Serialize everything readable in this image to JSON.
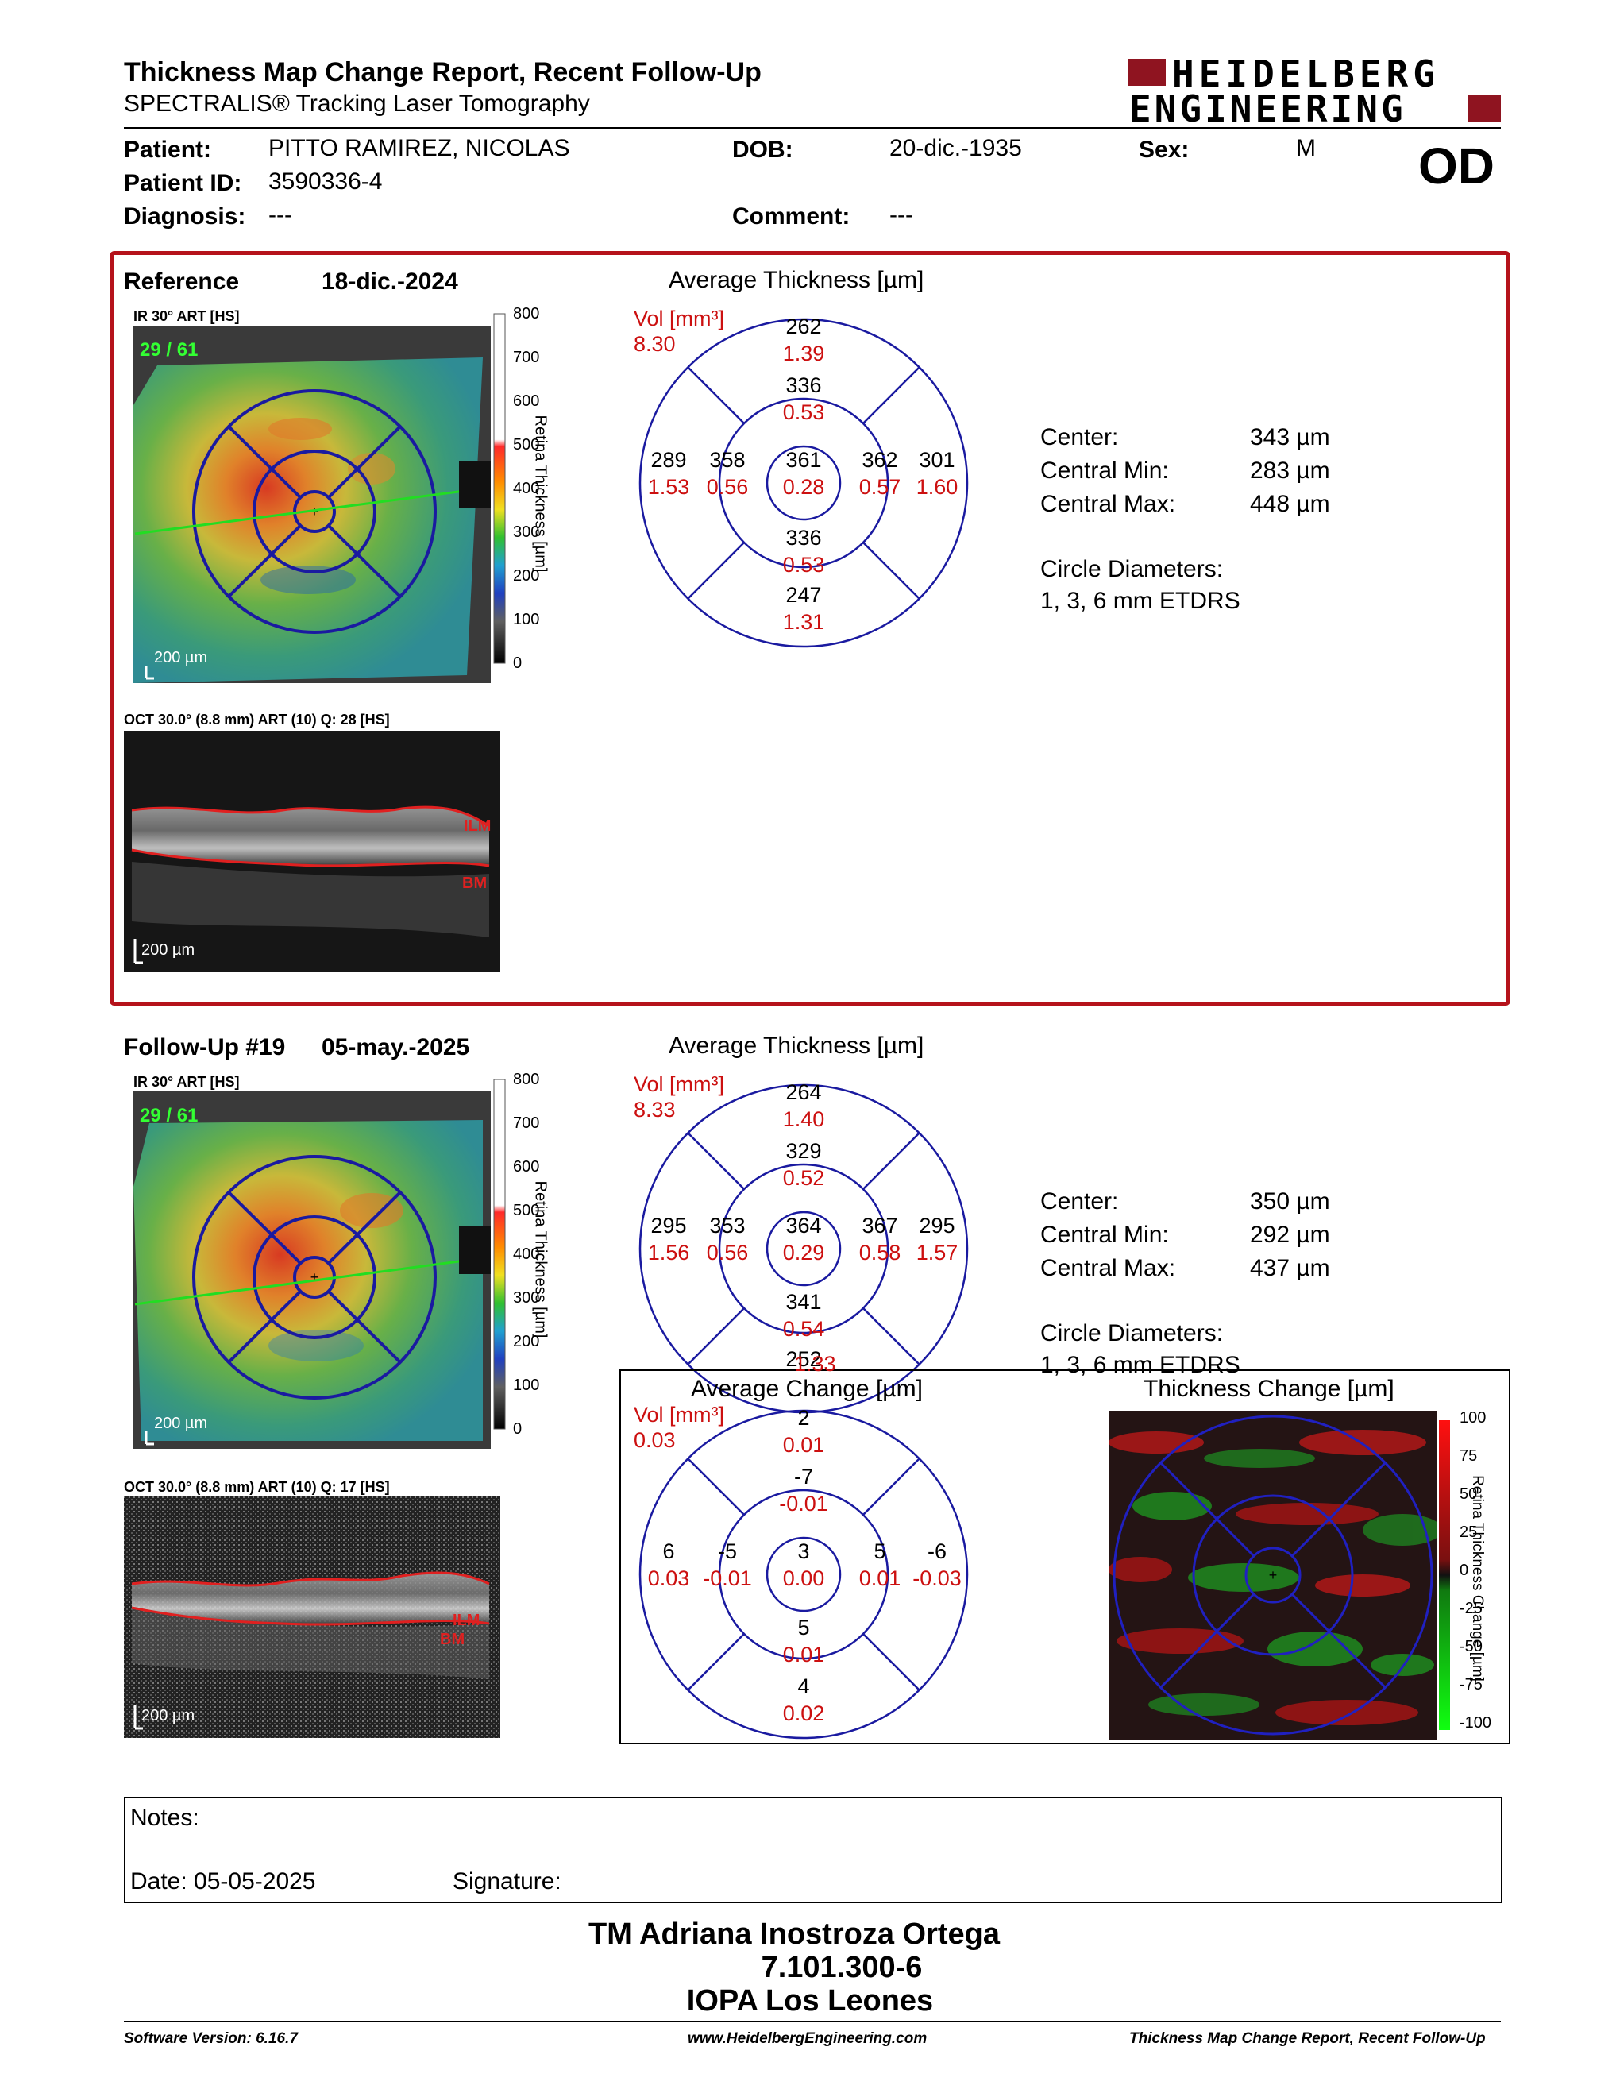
{
  "header": {
    "title": "Thickness Map Change Report, Recent Follow-Up",
    "subtitle": "SPECTRALIS® Tracking Laser Tomography",
    "logo_line1": "HEIDELBERG",
    "logo_line2": "ENGINEERING",
    "eye": "OD"
  },
  "patient": {
    "patient_label": "Patient:",
    "patient_value": "PITTO RAMIREZ, NICOLAS",
    "dob_label": "DOB:",
    "dob_value": "20-dic.-1935",
    "sex_label": "Sex:",
    "sex_value": "M",
    "id_label": "Patient ID:",
    "id_value": "3590336-4",
    "diagnosis_label": "Diagnosis:",
    "diagnosis_value": "---",
    "comment_label": "Comment:",
    "comment_value": "---"
  },
  "reference": {
    "label": "Reference",
    "date": "18-dic.-2024",
    "ir_label": "IR 30° ART [HS]",
    "frames": "29 / 61",
    "scale": "200 µm",
    "oct_label": "OCT 30.0° (8.8 mm) ART (10) Q: 28 [HS]",
    "oct_scale": "200 µm",
    "ilm": "ILM",
    "bm": "BM",
    "avg_title": "Average Thickness [µm]",
    "vol_label": "Vol [mm³]",
    "vol_value": "8.30",
    "sectors": {
      "outer_sup": {
        "t": "262",
        "v": "1.39"
      },
      "inner_sup": {
        "t": "336",
        "v": "0.53"
      },
      "outer_temp": {
        "t": "289",
        "v": "1.53"
      },
      "inner_temp": {
        "t": "358",
        "v": "0.56"
      },
      "center": {
        "t": "361",
        "v": "0.28"
      },
      "inner_nas": {
        "t": "362",
        "v": "0.57"
      },
      "outer_nas": {
        "t": "301",
        "v": "1.60"
      },
      "inner_inf": {
        "t": "336",
        "v": "0.53"
      },
      "outer_inf": {
        "t": "247",
        "v": "1.31"
      }
    },
    "stats": {
      "center_label": "Center:",
      "center_value": "343 µm",
      "min_label": "Central Min:",
      "min_value": "283 µm",
      "max_label": "Central Max:",
      "max_value": "448 µm",
      "circle_label": "Circle Diameters:",
      "circle_value": "1, 3, 6 mm ETDRS"
    }
  },
  "followup": {
    "label": "Follow-Up #19",
    "date": "05-may.-2025",
    "ir_label": "IR 30° ART [HS]",
    "frames": "29 / 61",
    "scale": "200 µm",
    "oct_label": "OCT 30.0° (8.8 mm) ART (10) Q: 17 [HS]",
    "oct_scale": "200 µm",
    "ilm": "ILM",
    "bm": "BM",
    "avg_title": "Average Thickness [µm]",
    "vol_label": "Vol [mm³]",
    "vol_value": "8.33",
    "sectors": {
      "outer_sup": {
        "t": "264",
        "v": "1.40"
      },
      "inner_sup": {
        "t": "329",
        "v": "0.52"
      },
      "outer_temp": {
        "t": "295",
        "v": "1.56"
      },
      "inner_temp": {
        "t": "353",
        "v": "0.56"
      },
      "center": {
        "t": "364",
        "v": "0.29"
      },
      "inner_nas": {
        "t": "367",
        "v": "0.58"
      },
      "outer_nas": {
        "t": "295",
        "v": "1.57"
      },
      "inner_inf": {
        "t": "341",
        "v": "0.54"
      },
      "outer_inf": {
        "t": "252",
        "v": "1.33"
      }
    },
    "stats": {
      "center_label": "Center:",
      "center_value": "350 µm",
      "min_label": "Central Min:",
      "min_value": "292 µm",
      "max_label": "Central Max:",
      "max_value": "437 µm",
      "circle_label": "Circle Diameters:",
      "circle_value": "1, 3, 6 mm ETDRS"
    }
  },
  "change": {
    "avg_title": "Average Change [µm]",
    "vol_label": "Vol [mm³]",
    "vol_value": "0.03",
    "sectors": {
      "outer_sup": {
        "t": "2",
        "v": "0.01"
      },
      "inner_sup": {
        "t": "-7",
        "v": "-0.01"
      },
      "outer_temp": {
        "t": "6",
        "v": "0.03"
      },
      "inner_temp": {
        "t": "-5",
        "v": "-0.01"
      },
      "center": {
        "t": "3",
        "v": "0.00"
      },
      "inner_nas": {
        "t": "5",
        "v": "0.01"
      },
      "outer_nas": {
        "t": "-6",
        "v": "-0.03"
      },
      "inner_inf": {
        "t": "5",
        "v": "0.01"
      },
      "outer_inf": {
        "t": "4",
        "v": "0.02"
      }
    },
    "map_title": "Thickness Change [µm]",
    "scale_label": "Retina Thickness Change [µm]",
    "scale_ticks": [
      "100",
      "75",
      "50",
      "25",
      "0",
      "-25",
      "-50",
      "-75",
      "-100"
    ]
  },
  "thickness_scale": {
    "label": "Retina Thickness [µm]",
    "ticks": [
      "800",
      "700",
      "600",
      "500",
      "400",
      "300",
      "200",
      "100",
      "0"
    ]
  },
  "notes": {
    "notes_label": "Notes:",
    "date_label": "Date: 05-05-2025",
    "signature_label": "Signature:"
  },
  "signatory": {
    "name": "TM Adriana Inostroza Ortega",
    "id": "7.101.300-6",
    "org": "IOPA Los Leones"
  },
  "footer": {
    "software": "Software Version: 6.16.7",
    "url": "www.HeidelbergEngineering.com",
    "report": "Thickness Map Change Report, Recent Follow-Up"
  },
  "colors": {
    "accent_red": "#b5121b",
    "value_red": "#cc1010",
    "grid_blue": "#1a1aa0"
  }
}
